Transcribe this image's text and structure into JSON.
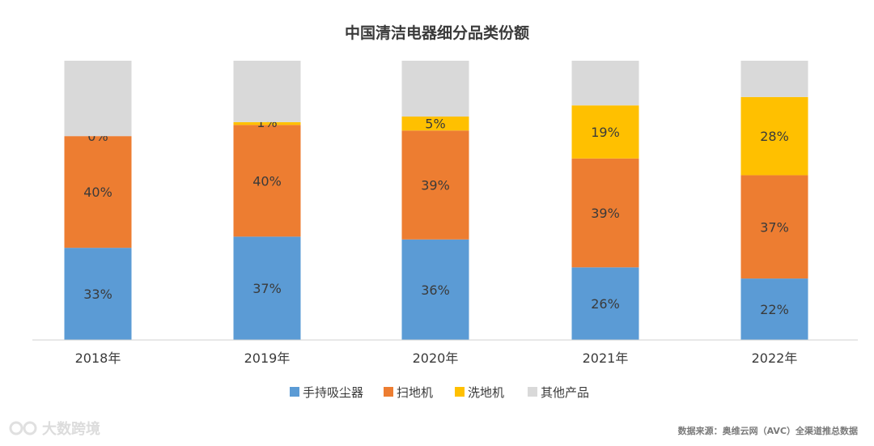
{
  "chart_data": {
    "type": "bar",
    "stacked": true,
    "title": "中国清洁电器细分品类份额",
    "categories": [
      "2018年",
      "2019年",
      "2020年",
      "2021年",
      "2022年"
    ],
    "series": [
      {
        "name": "手持吸尘器",
        "color": "#5b9bd5",
        "values": [
          33,
          37,
          36,
          26,
          22
        ],
        "labels": [
          "33%",
          "37%",
          "36%",
          "26%",
          "22%"
        ]
      },
      {
        "name": "扫地机",
        "color": "#ed7d31",
        "values": [
          40,
          40,
          39,
          39,
          37
        ],
        "labels": [
          "40%",
          "40%",
          "39%",
          "39%",
          "37%"
        ]
      },
      {
        "name": "洗地机",
        "color": "#ffc000",
        "values": [
          0,
          1,
          5,
          19,
          28
        ],
        "labels": [
          "0%",
          "1%",
          "5%",
          "19%",
          "28%"
        ]
      },
      {
        "name": "其他产品",
        "color": "#d9d9d9",
        "values": [
          27,
          22,
          20,
          16,
          13
        ],
        "labels": [
          "",
          "",
          "",
          "",
          ""
        ]
      }
    ],
    "ylim": [
      0,
      100
    ],
    "legend": "bottom",
    "grid": false
  },
  "source_note": "数据来源：奥维云网（AVC）全渠道推总数据",
  "watermark": "大数跨境"
}
